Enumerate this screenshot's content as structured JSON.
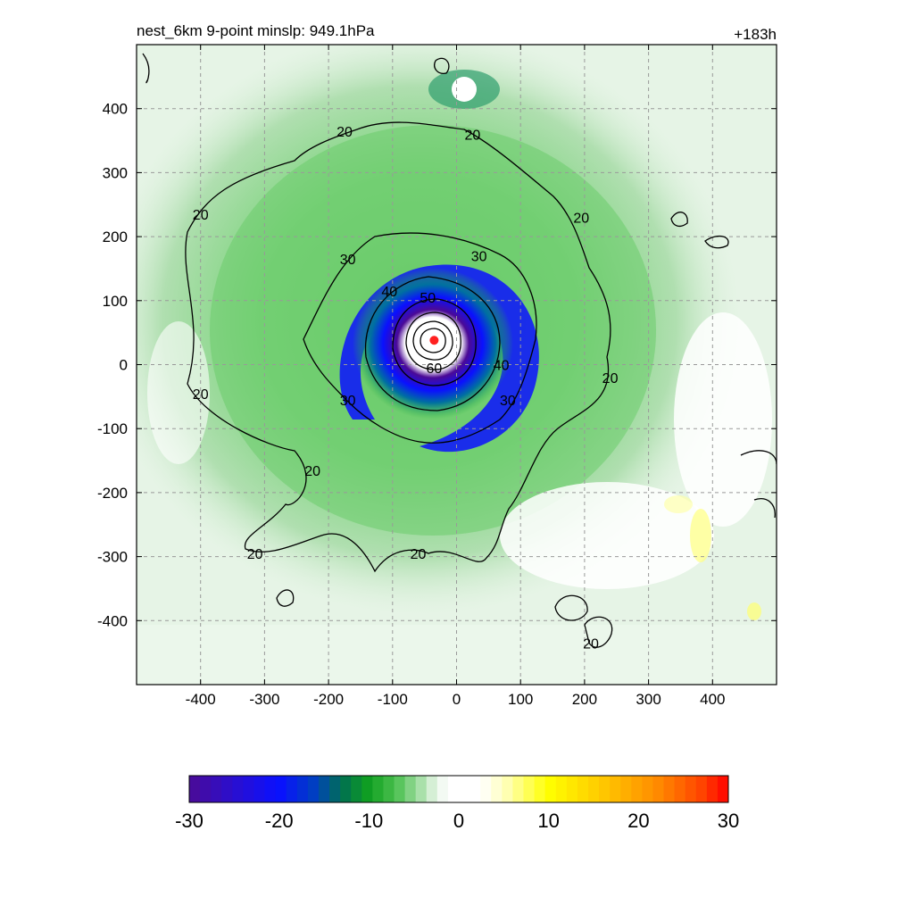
{
  "title_left": "nest_6km  9-point minslp: 949.1hPa",
  "title_right": "+183h",
  "colors": {
    "shade_low": "#4b0a96",
    "shade_mid": "#2ab43a",
    "shade_high": "#ff1a00",
    "contour": "#000000",
    "grid": "#999999",
    "center_marker": "#ff2020"
  },
  "chart_data": {
    "type": "heatmap",
    "description_fields": "shaded anomaly field with wind-speed contours",
    "x_ticks": [
      -400,
      -300,
      -200,
      -100,
      0,
      100,
      200,
      300,
      400
    ],
    "y_ticks": [
      400,
      300,
      200,
      100,
      0,
      -100,
      -200,
      -300,
      -400
    ],
    "xlim": [
      -500,
      500
    ],
    "ylim": [
      -500,
      500
    ],
    "grid": true,
    "center": {
      "x": -35,
      "y": 38
    },
    "contour_labels": [
      {
        "text": "20",
        "x": -175,
        "y": 365
      },
      {
        "text": "20",
        "x": 25,
        "y": 360
      },
      {
        "text": "20",
        "x": 195,
        "y": 230
      },
      {
        "text": "20",
        "x": -400,
        "y": 235
      },
      {
        "text": "20",
        "x": -400,
        "y": -45
      },
      {
        "text": "20",
        "x": 240,
        "y": -20
      },
      {
        "text": "20",
        "x": -225,
        "y": -165
      },
      {
        "text": "20",
        "x": -315,
        "y": -295
      },
      {
        "text": "20",
        "x": -60,
        "y": -295
      },
      {
        "text": "20",
        "x": 210,
        "y": -435
      },
      {
        "text": "30",
        "x": -170,
        "y": 165
      },
      {
        "text": "30",
        "x": 35,
        "y": 170
      },
      {
        "text": "30",
        "x": -170,
        "y": -55
      },
      {
        "text": "30",
        "x": 80,
        "y": -55
      },
      {
        "text": "40",
        "x": -105,
        "y": 115
      },
      {
        "text": "40",
        "x": 70,
        "y": 0
      },
      {
        "text": "50",
        "x": -45,
        "y": 105
      },
      {
        "text": "60",
        "x": -35,
        "y": -5
      }
    ],
    "colorbar": {
      "ticks": [
        -30,
        -20,
        -10,
        0,
        10,
        20,
        30
      ],
      "range": [
        -30,
        30
      ],
      "stops": [
        {
          "v": -30,
          "c": "#4b0a96"
        },
        {
          "v": -25,
          "c": "#2a0fd0"
        },
        {
          "v": -20,
          "c": "#0a10ff"
        },
        {
          "v": -16,
          "c": "#0040c0"
        },
        {
          "v": -13,
          "c": "#007050"
        },
        {
          "v": -10,
          "c": "#10a020"
        },
        {
          "v": -7,
          "c": "#4cc050"
        },
        {
          "v": -4,
          "c": "#b0e2b0"
        },
        {
          "v": -2.5,
          "c": "#e8f6e8"
        },
        {
          "v": -1,
          "c": "#ffffff"
        },
        {
          "v": 2.5,
          "c": "#ffffff"
        },
        {
          "v": 5,
          "c": "#ffffc0"
        },
        {
          "v": 10,
          "c": "#ffff00"
        },
        {
          "v": 16,
          "c": "#ffc800"
        },
        {
          "v": 22,
          "c": "#ff8c00"
        },
        {
          "v": 27,
          "c": "#ff4400"
        },
        {
          "v": 30,
          "c": "#ff0000"
        }
      ]
    }
  }
}
